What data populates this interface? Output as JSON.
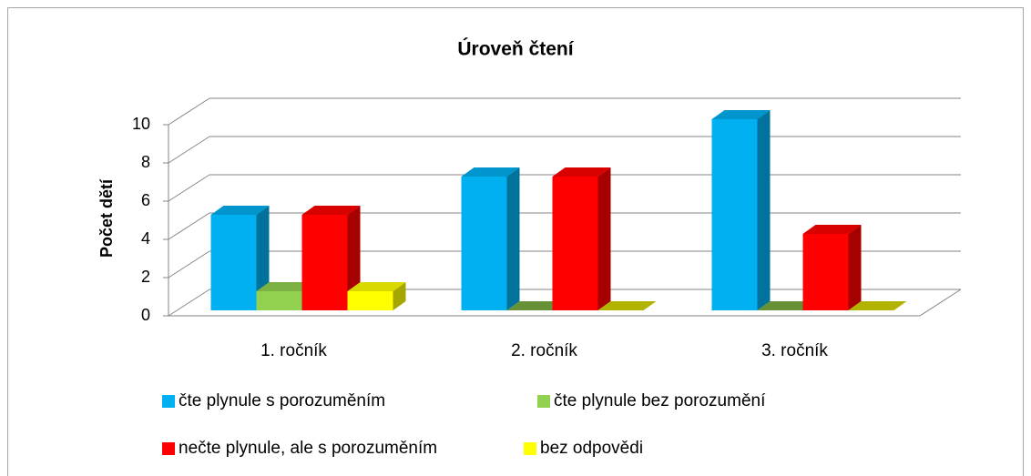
{
  "chart_data": {
    "type": "bar3d",
    "title": "Úroveň čtení",
    "y_label": "Počet dětí",
    "categories": [
      "1. ročník",
      "2. ročník",
      "3. ročník"
    ],
    "series": [
      {
        "name": "čte plynule s porozuměním",
        "color": "#00b0f0",
        "values": [
          5,
          7,
          10
        ]
      },
      {
        "name": "čte plynule bez porozumění",
        "color": "#92d050",
        "values": [
          1,
          0,
          0
        ]
      },
      {
        "name": "nečte plynule, ale s porozuměním",
        "color": "#ff0000",
        "values": [
          5,
          7,
          4
        ]
      },
      {
        "name": "bez odpovědi",
        "color": "#ffff00",
        "values": [
          1,
          0,
          0
        ]
      }
    ],
    "ylim": [
      0,
      10
    ],
    "yticks": [
      0,
      2,
      4,
      6,
      8,
      10
    ],
    "grid": true,
    "legend": "bottom"
  }
}
